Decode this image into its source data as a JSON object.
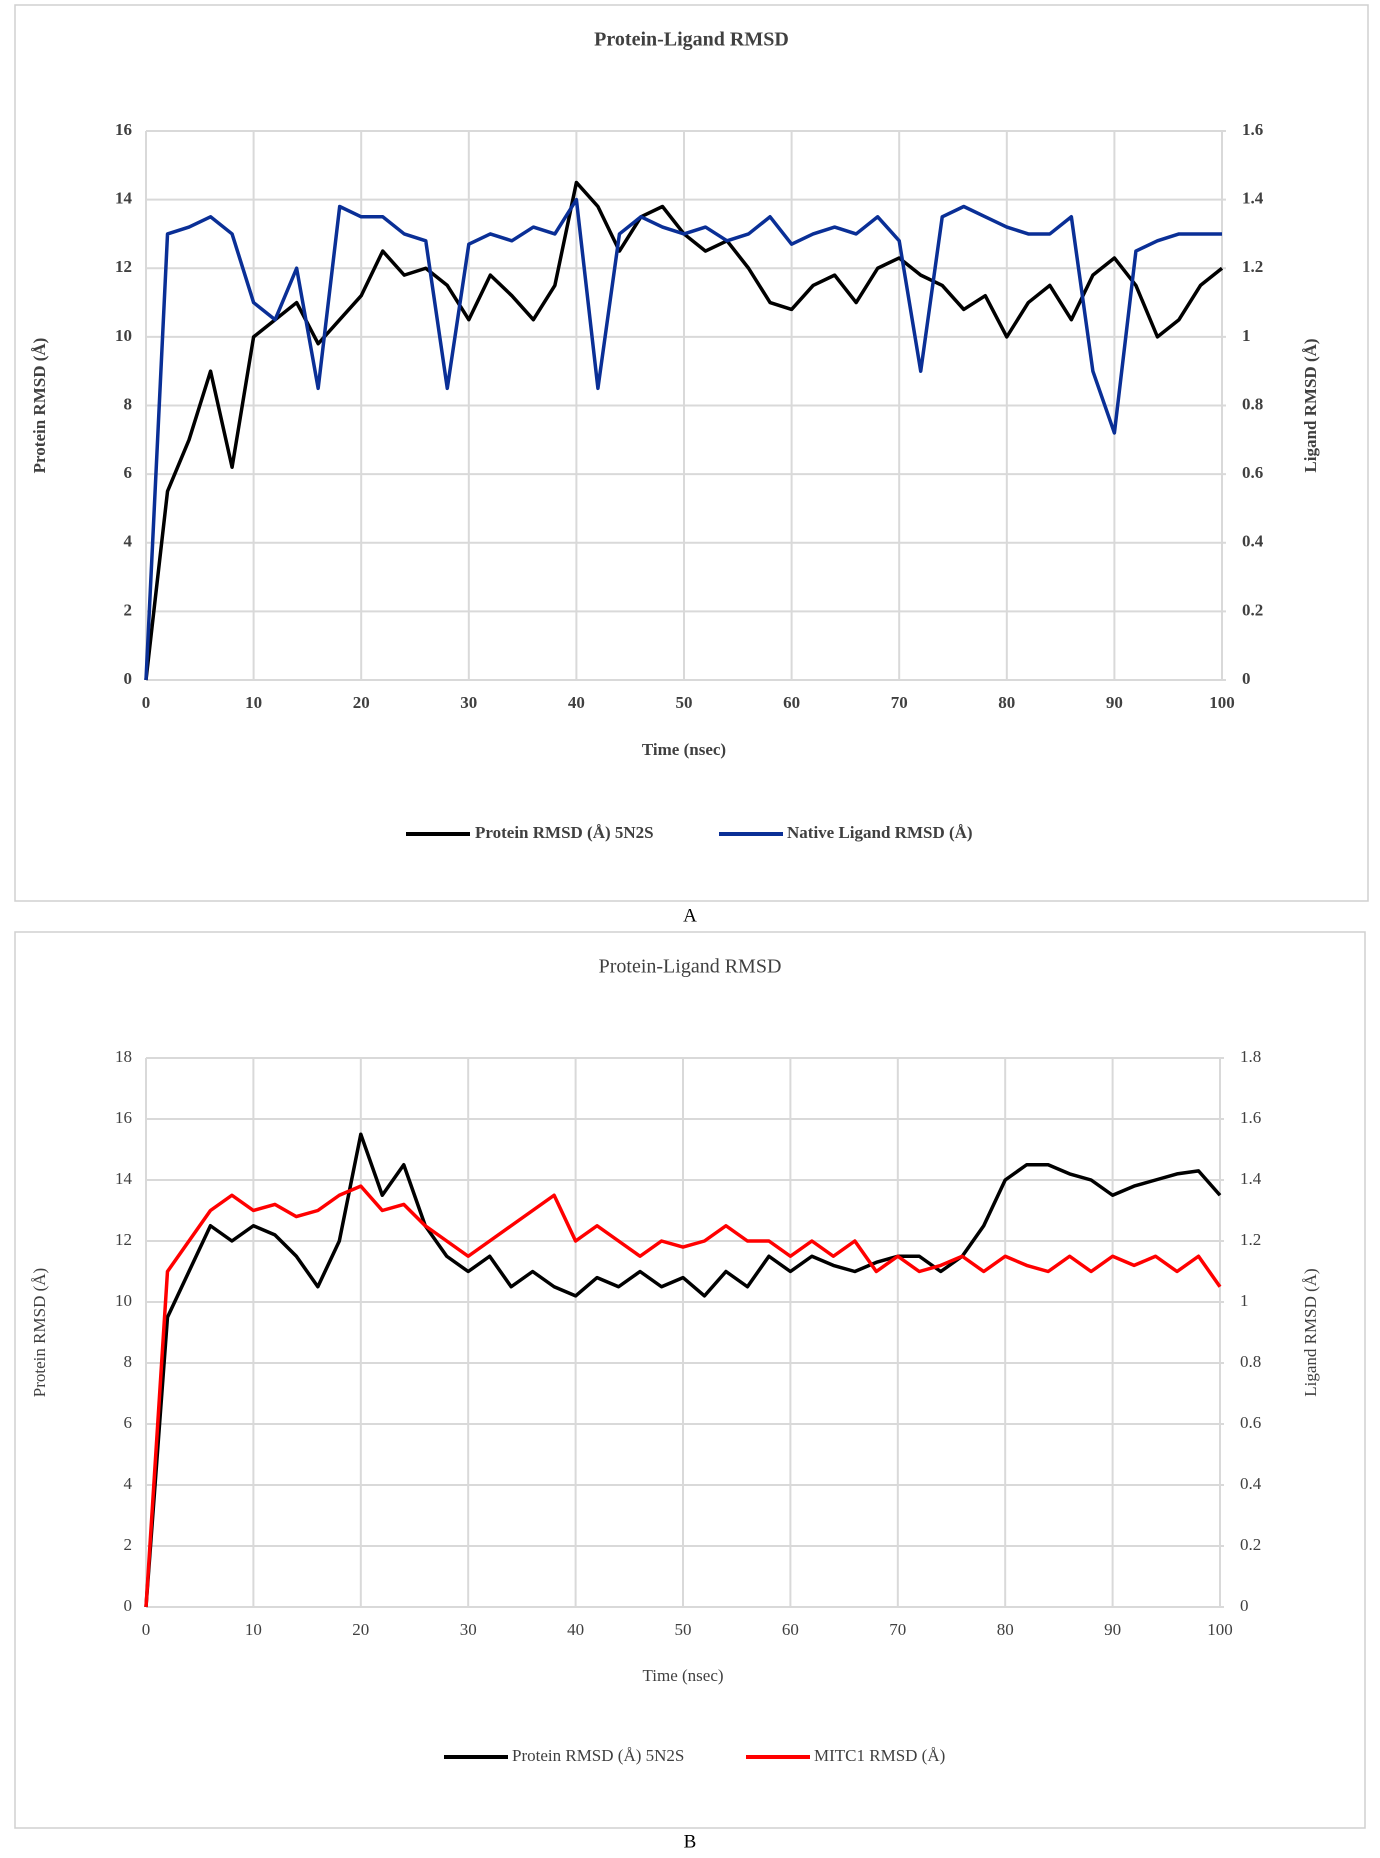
{
  "chart_data": [
    {
      "type": "line",
      "title": "Protein-Ligand RMSD",
      "panel": "A",
      "xlabel": "Time (nsec)",
      "ylabel": "Protein RMSD (Å)",
      "y2label": "Ligand RMSD (Å)",
      "x": [
        0,
        2,
        4,
        6,
        8,
        10,
        12,
        14,
        16,
        18,
        20,
        22,
        24,
        26,
        28,
        30,
        32,
        34,
        36,
        38,
        40,
        42,
        44,
        46,
        48,
        50,
        52,
        54,
        56,
        58,
        60,
        62,
        64,
        66,
        68,
        70,
        72,
        74,
        76,
        78,
        80,
        82,
        84,
        86,
        88,
        90,
        92,
        94,
        96,
        98,
        100
      ],
      "xlim": [
        0,
        100
      ],
      "xticks": [
        0,
        10,
        20,
        30,
        40,
        50,
        60,
        70,
        80,
        90,
        100
      ],
      "ylim": [
        0,
        16
      ],
      "yticks": [
        0,
        2,
        4,
        6,
        8,
        10,
        12,
        14,
        16
      ],
      "y2lim": [
        0,
        1.6
      ],
      "y2ticks": [
        0,
        0.2,
        0.4,
        0.6,
        0.8,
        1,
        1.2,
        1.4,
        1.6
      ],
      "grid": true,
      "legend": "bottom",
      "series": [
        {
          "name": "Protein RMSD (Å) 5N2S",
          "color": "#000000",
          "values": [
            0,
            5.5,
            7.0,
            9.0,
            6.2,
            10.0,
            10.5,
            11.0,
            9.8,
            10.5,
            11.2,
            12.5,
            11.8,
            12.0,
            11.5,
            10.5,
            11.8,
            11.2,
            10.5,
            11.5,
            14.5,
            13.8,
            12.5,
            13.5,
            13.8,
            13.0,
            12.5,
            12.8,
            12.0,
            11.0,
            10.8,
            11.5,
            11.8,
            11.0,
            12.0,
            12.3,
            11.8,
            11.5,
            10.8,
            11.2,
            10.0,
            11.0,
            11.5,
            10.5,
            11.8,
            12.3,
            11.5,
            10.0,
            10.5,
            11.5,
            12.0
          ]
        },
        {
          "name": "Native Ligand RMSD (Å)",
          "color": "#0a2f96",
          "axis": "y2",
          "values": [
            0,
            1.3,
            1.32,
            1.35,
            1.3,
            1.1,
            1.05,
            1.2,
            0.85,
            1.38,
            1.35,
            1.35,
            1.3,
            1.28,
            0.85,
            1.27,
            1.3,
            1.28,
            1.32,
            1.3,
            1.4,
            0.85,
            1.3,
            1.35,
            1.32,
            1.3,
            1.32,
            1.28,
            1.3,
            1.35,
            1.27,
            1.3,
            1.32,
            1.3,
            1.35,
            1.28,
            0.9,
            1.35,
            1.38,
            1.35,
            1.32,
            1.3,
            1.3,
            1.35,
            0.9,
            0.72,
            1.25,
            1.28,
            1.3,
            1.3,
            1.3
          ]
        }
      ]
    },
    {
      "type": "line",
      "title": "Protein-Ligand RMSD",
      "panel": "B",
      "xlabel": "Time (nsec)",
      "ylabel": "Protein RMSD (Å)",
      "y2label": "Ligand RMSD (Å)",
      "x": [
        0,
        2,
        4,
        6,
        8,
        10,
        12,
        14,
        16,
        18,
        20,
        22,
        24,
        26,
        28,
        30,
        32,
        34,
        36,
        38,
        40,
        42,
        44,
        46,
        48,
        50,
        52,
        54,
        56,
        58,
        60,
        62,
        64,
        66,
        68,
        70,
        72,
        74,
        76,
        78,
        80,
        82,
        84,
        86,
        88,
        90,
        92,
        94,
        96,
        98,
        100
      ],
      "xlim": [
        0,
        100
      ],
      "xticks": [
        0,
        10,
        20,
        30,
        40,
        50,
        60,
        70,
        80,
        90,
        100
      ],
      "ylim": [
        0,
        18
      ],
      "yticks": [
        0,
        2,
        4,
        6,
        8,
        10,
        12,
        14,
        16,
        18
      ],
      "y2lim": [
        0,
        1.8
      ],
      "y2ticks": [
        0,
        0.2,
        0.4,
        0.6,
        0.8,
        1,
        1.2,
        1.4,
        1.6,
        1.8
      ],
      "grid": true,
      "legend": "bottom",
      "series": [
        {
          "name": "Protein RMSD (Å) 5N2S",
          "color": "#000000",
          "values": [
            0,
            9.5,
            11.0,
            12.5,
            12.0,
            12.5,
            12.2,
            11.5,
            10.5,
            12.0,
            15.5,
            13.5,
            14.5,
            12.5,
            11.5,
            11.0,
            11.5,
            10.5,
            11.0,
            10.5,
            10.2,
            10.8,
            10.5,
            11.0,
            10.5,
            10.8,
            10.2,
            11.0,
            10.5,
            11.5,
            11.0,
            11.5,
            11.2,
            11.0,
            11.3,
            11.5,
            11.5,
            11.0,
            11.5,
            12.5,
            14.0,
            14.5,
            14.5,
            14.2,
            14.0,
            13.5,
            13.8,
            14.0,
            14.2,
            14.3,
            13.5
          ]
        },
        {
          "name": "MITC1 RMSD (Å)",
          "color": "#ff0000",
          "axis": "y2",
          "values": [
            0,
            1.1,
            1.2,
            1.3,
            1.35,
            1.3,
            1.32,
            1.28,
            1.3,
            1.35,
            1.38,
            1.3,
            1.32,
            1.25,
            1.2,
            1.15,
            1.2,
            1.25,
            1.3,
            1.35,
            1.2,
            1.25,
            1.2,
            1.15,
            1.2,
            1.18,
            1.2,
            1.25,
            1.2,
            1.2,
            1.15,
            1.2,
            1.15,
            1.2,
            1.1,
            1.15,
            1.1,
            1.12,
            1.15,
            1.1,
            1.15,
            1.12,
            1.1,
            1.15,
            1.1,
            1.15,
            1.12,
            1.15,
            1.1,
            1.15,
            1.05
          ]
        }
      ]
    }
  ]
}
